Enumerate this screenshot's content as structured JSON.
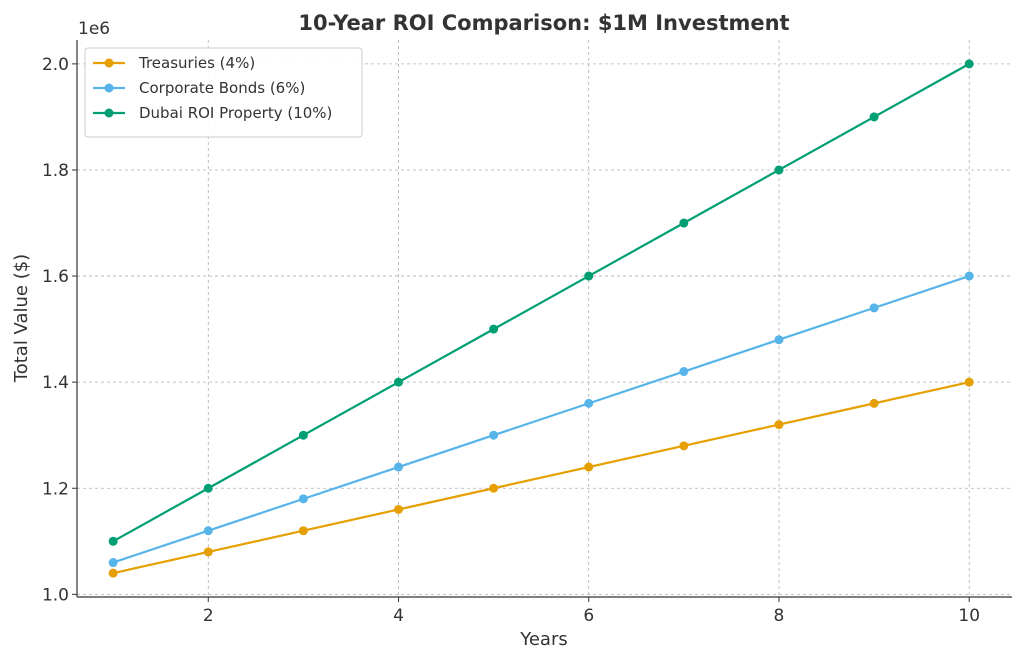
{
  "chart_data": {
    "type": "line",
    "title": "10-Year ROI Comparison: $1M Investment",
    "xlabel": "Years",
    "ylabel": "Total Value ($)",
    "y_offset_text": "1e6",
    "x": [
      1,
      2,
      3,
      4,
      5,
      6,
      7,
      8,
      9,
      10
    ],
    "xlim": [
      0.62,
      10.45
    ],
    "ylim": [
      0.995,
      2.045
    ],
    "y_scale_multiplier": 1000000,
    "x_ticks": [
      2,
      4,
      6,
      8,
      10
    ],
    "x_tick_labels": [
      "2",
      "4",
      "6",
      "8",
      "10"
    ],
    "y_ticks": [
      1.0,
      1.2,
      1.4,
      1.6,
      1.8,
      2.0
    ],
    "y_tick_labels": [
      "1.0",
      "1.2",
      "1.4",
      "1.6",
      "1.8",
      "2.0"
    ],
    "grid": true,
    "legend_position": "top-left",
    "series": [
      {
        "name": "Treasuries (4%)",
        "color": "#E69F00",
        "values": [
          1.04,
          1.08,
          1.12,
          1.16,
          1.2,
          1.24,
          1.28,
          1.32,
          1.36,
          1.4
        ]
      },
      {
        "name": "Corporate Bonds (6%)",
        "color": "#56B4E9",
        "values": [
          1.06,
          1.12,
          1.18,
          1.24,
          1.3,
          1.36,
          1.42,
          1.48,
          1.54,
          1.6
        ]
      },
      {
        "name": "Dubai ROI Property (10%)",
        "color": "#009E73",
        "values": [
          1.1,
          1.2,
          1.3,
          1.4,
          1.5,
          1.6,
          1.7,
          1.8,
          1.9,
          2.0
        ]
      }
    ]
  }
}
